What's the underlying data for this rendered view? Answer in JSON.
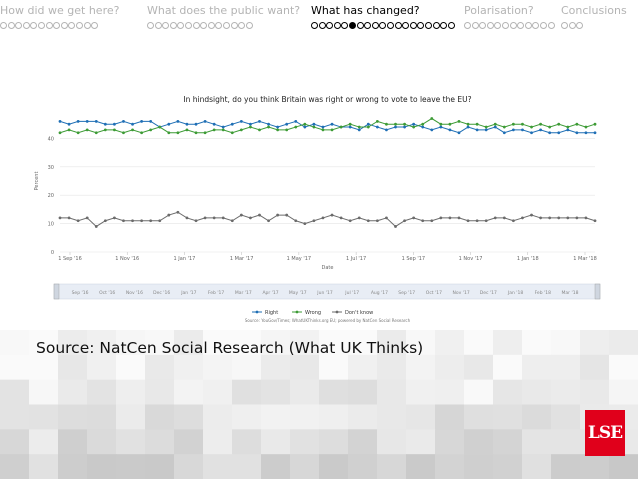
{
  "nav": {
    "sections": [
      {
        "title": "How did we get here?",
        "dots": 13,
        "filled": -1,
        "active": false
      },
      {
        "title": "What does the public want?",
        "dots": 14,
        "filled": -1,
        "active": false
      },
      {
        "title": "What has changed?",
        "dots": 19,
        "filled": 5,
        "active": true
      },
      {
        "title": "Polarisation?",
        "dots": 12,
        "filled": -1,
        "active": false
      },
      {
        "title": "Conclusions",
        "dots": 3,
        "filled": -1,
        "active": false
      }
    ]
  },
  "chart_data": {
    "type": "line",
    "title": "In hindsight, do you think Britain was right or wrong to vote to leave the EU?",
    "ylabel": "Percent",
    "xlabel": "Date",
    "ylim": [
      0,
      60
    ],
    "yticks": [
      0,
      10,
      20,
      30,
      40
    ],
    "xticks": [
      "1 Sep '16",
      "1 Nov '16",
      "1 Jan '17",
      "1 Mar '17",
      "1 May '17",
      "1 Jul '17",
      "1 Sep '17",
      "1 Nov '17",
      "1 Jan '18",
      "1 Mar '18"
    ],
    "navigator_labels": [
      "Sep '16",
      "Oct '16",
      "Nov '16",
      "Dec '16",
      "Jan '17",
      "Feb '17",
      "Mar '17",
      "Apr '17",
      "May '17",
      "Jun '17",
      "Jul '17",
      "Aug '17",
      "Sep '17",
      "Oct '17",
      "Nov '17",
      "Dec '17",
      "Jan '18",
      "Feb '18",
      "Mar '18"
    ],
    "legend": [
      "Right",
      "Wrong",
      "Don't know"
    ],
    "legend_position": "bottom",
    "source_note": "Source: YouGov/Times; WhatUKThinks.org EU; powered by NatCen Social Research",
    "colors": {
      "Right": "#1f6fb5",
      "Wrong": "#3d9b35",
      "Don't know": "#6b6b6b"
    },
    "series": [
      {
        "name": "Right",
        "values": [
          46,
          45,
          46,
          46,
          46,
          45,
          45,
          46,
          45,
          46,
          46,
          44,
          45,
          46,
          45,
          45,
          46,
          45,
          44,
          45,
          46,
          45,
          46,
          45,
          44,
          45,
          46,
          44,
          45,
          44,
          45,
          44,
          44,
          43,
          45,
          44,
          43,
          44,
          44,
          45,
          44,
          43,
          44,
          43,
          42,
          44,
          43,
          43,
          44,
          42,
          43,
          43,
          42,
          43,
          42,
          42,
          43,
          42,
          42,
          42
        ]
      },
      {
        "name": "Wrong",
        "values": [
          42,
          43,
          42,
          43,
          42,
          43,
          43,
          42,
          43,
          42,
          43,
          44,
          42,
          42,
          43,
          42,
          42,
          43,
          43,
          42,
          43,
          44,
          43,
          44,
          43,
          43,
          44,
          45,
          44,
          43,
          43,
          44,
          45,
          44,
          44,
          46,
          45,
          45,
          45,
          44,
          45,
          47,
          45,
          45,
          46,
          45,
          45,
          44,
          45,
          44,
          45,
          45,
          44,
          45,
          44,
          45,
          44,
          45,
          44,
          45
        ]
      },
      {
        "name": "Don't know",
        "values": [
          12,
          12,
          11,
          12,
          9,
          11,
          12,
          11,
          11,
          11,
          11,
          11,
          13,
          14,
          12,
          11,
          12,
          12,
          12,
          11,
          13,
          12,
          13,
          11,
          13,
          13,
          11,
          10,
          11,
          12,
          13,
          12,
          11,
          12,
          11,
          11,
          12,
          9,
          11,
          12,
          11,
          11,
          12,
          12,
          12,
          11,
          11,
          11,
          12,
          12,
          11,
          12,
          13,
          12,
          12,
          12,
          12,
          12,
          12,
          11
        ]
      }
    ]
  },
  "source": {
    "text": "Source: NatCen Social Research (What UK Thinks)"
  },
  "logo": {
    "text": "LSE"
  }
}
